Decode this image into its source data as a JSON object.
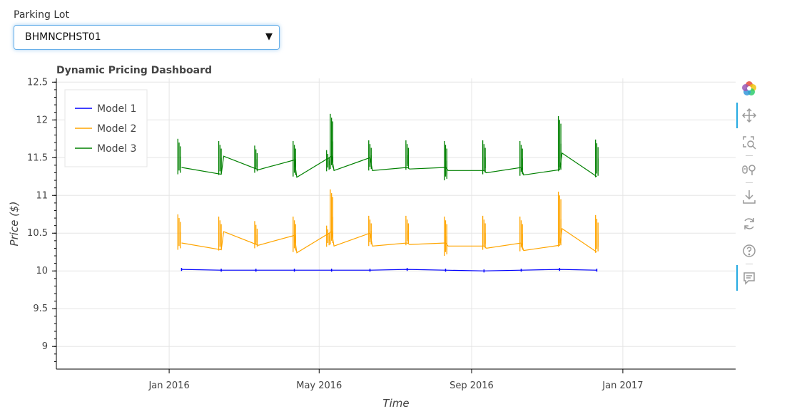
{
  "widget": {
    "label": "Parking Lot",
    "selected": "BHMNCPHST01",
    "caret": "▼"
  },
  "chart_data": {
    "type": "line",
    "title": "Dynamic Pricing Dashboard",
    "xlabel": "Time",
    "ylabel": "Price ($)",
    "ylim": [
      8.7,
      12.55
    ],
    "xlim": [
      "2015-10-02",
      "2017-04-02"
    ],
    "yticks": [
      9,
      9.5,
      10,
      10.5,
      11,
      11.5,
      12,
      12.5
    ],
    "ytick_labels": [
      "9",
      "9.5",
      "10",
      "10.5",
      "11",
      "11.5",
      "12",
      "12.5"
    ],
    "xticks": [
      "2016-01-01",
      "2016-05-01",
      "2016-09-01",
      "2017-01-01"
    ],
    "xtick_labels": [
      "Jan 2016",
      "May 2016",
      "Sep 2016",
      "Jan 2017"
    ],
    "grid": true,
    "legend_position": "top-left",
    "colors": {
      "Model 1": "#0000ff",
      "Model 2": "#ffa500",
      "Model 3": "#008000"
    },
    "series": [
      {
        "name": "Model 1",
        "x": [
          "2016-01-11",
          "2016-02-12",
          "2016-03-11",
          "2016-04-11",
          "2016-05-11",
          "2016-06-11",
          "2016-07-11",
          "2016-08-11",
          "2016-09-11",
          "2016-10-11",
          "2016-11-11",
          "2016-12-11"
        ],
        "y": [
          10.02,
          10.01,
          10.01,
          10.01,
          10.01,
          10.01,
          10.02,
          10.01,
          10.0,
          10.01,
          10.02,
          10.01
        ]
      },
      {
        "name": "Model 2",
        "x": [
          "2016-01-11",
          "2016-02-12",
          "2016-02-14",
          "2016-03-13",
          "2016-04-11",
          "2016-04-13",
          "2016-05-11",
          "2016-05-13",
          "2016-06-11",
          "2016-06-13",
          "2016-07-11",
          "2016-07-13",
          "2016-08-11",
          "2016-08-13",
          "2016-09-11",
          "2016-09-13",
          "2016-10-11",
          "2016-10-13",
          "2016-11-11",
          "2016-11-13",
          "2016-12-11"
        ],
        "y": [
          10.37,
          10.28,
          10.52,
          10.34,
          10.47,
          10.24,
          10.52,
          10.33,
          10.5,
          10.33,
          10.37,
          10.35,
          10.37,
          10.33,
          10.33,
          10.3,
          10.37,
          10.27,
          10.34,
          10.56,
          10.25
        ]
      },
      {
        "name": "Model 3",
        "x": [
          "2016-01-11",
          "2016-02-12",
          "2016-02-14",
          "2016-03-13",
          "2016-04-11",
          "2016-04-13",
          "2016-05-11",
          "2016-05-13",
          "2016-06-11",
          "2016-06-13",
          "2016-07-11",
          "2016-07-13",
          "2016-08-11",
          "2016-08-13",
          "2016-09-11",
          "2016-09-13",
          "2016-10-11",
          "2016-10-13",
          "2016-11-11",
          "2016-11-13",
          "2016-12-11"
        ],
        "y": [
          11.37,
          11.28,
          11.52,
          11.34,
          11.47,
          11.24,
          11.52,
          11.33,
          11.5,
          11.33,
          11.37,
          11.35,
          11.37,
          11.33,
          11.33,
          11.3,
          11.37,
          11.27,
          11.34,
          11.56,
          11.25
        ]
      }
    ],
    "spikes": [
      {
        "date": "2016-01-10",
        "low": 11.28,
        "high": 11.75
      },
      {
        "date": "2016-02-12",
        "low": 11.27,
        "high": 11.72
      },
      {
        "date": "2016-03-12",
        "low": 11.3,
        "high": 11.66
      },
      {
        "date": "2016-04-12",
        "low": 11.25,
        "high": 11.72
      },
      {
        "date": "2016-05-09",
        "low": 11.32,
        "high": 11.6
      },
      {
        "date": "2016-05-12",
        "low": 11.35,
        "high": 12.08
      },
      {
        "date": "2016-06-12",
        "low": 11.33,
        "high": 11.73
      },
      {
        "date": "2016-07-12",
        "low": 11.34,
        "high": 11.73
      },
      {
        "date": "2016-08-12",
        "low": 11.2,
        "high": 11.72
      },
      {
        "date": "2016-09-12",
        "low": 11.28,
        "high": 11.73
      },
      {
        "date": "2016-10-12",
        "low": 11.26,
        "high": 11.72
      },
      {
        "date": "2016-11-12",
        "low": 11.32,
        "high": 12.05
      },
      {
        "date": "2016-12-12",
        "low": 11.24,
        "high": 11.74
      }
    ],
    "model2_offset": -1.0
  },
  "toolbar": {
    "icons": [
      "bokeh-logo-icon",
      "pan-icon",
      "box-zoom-icon",
      "wheel-zoom-icon",
      "save-icon",
      "reset-icon",
      "help-icon",
      "comment-icon"
    ]
  }
}
